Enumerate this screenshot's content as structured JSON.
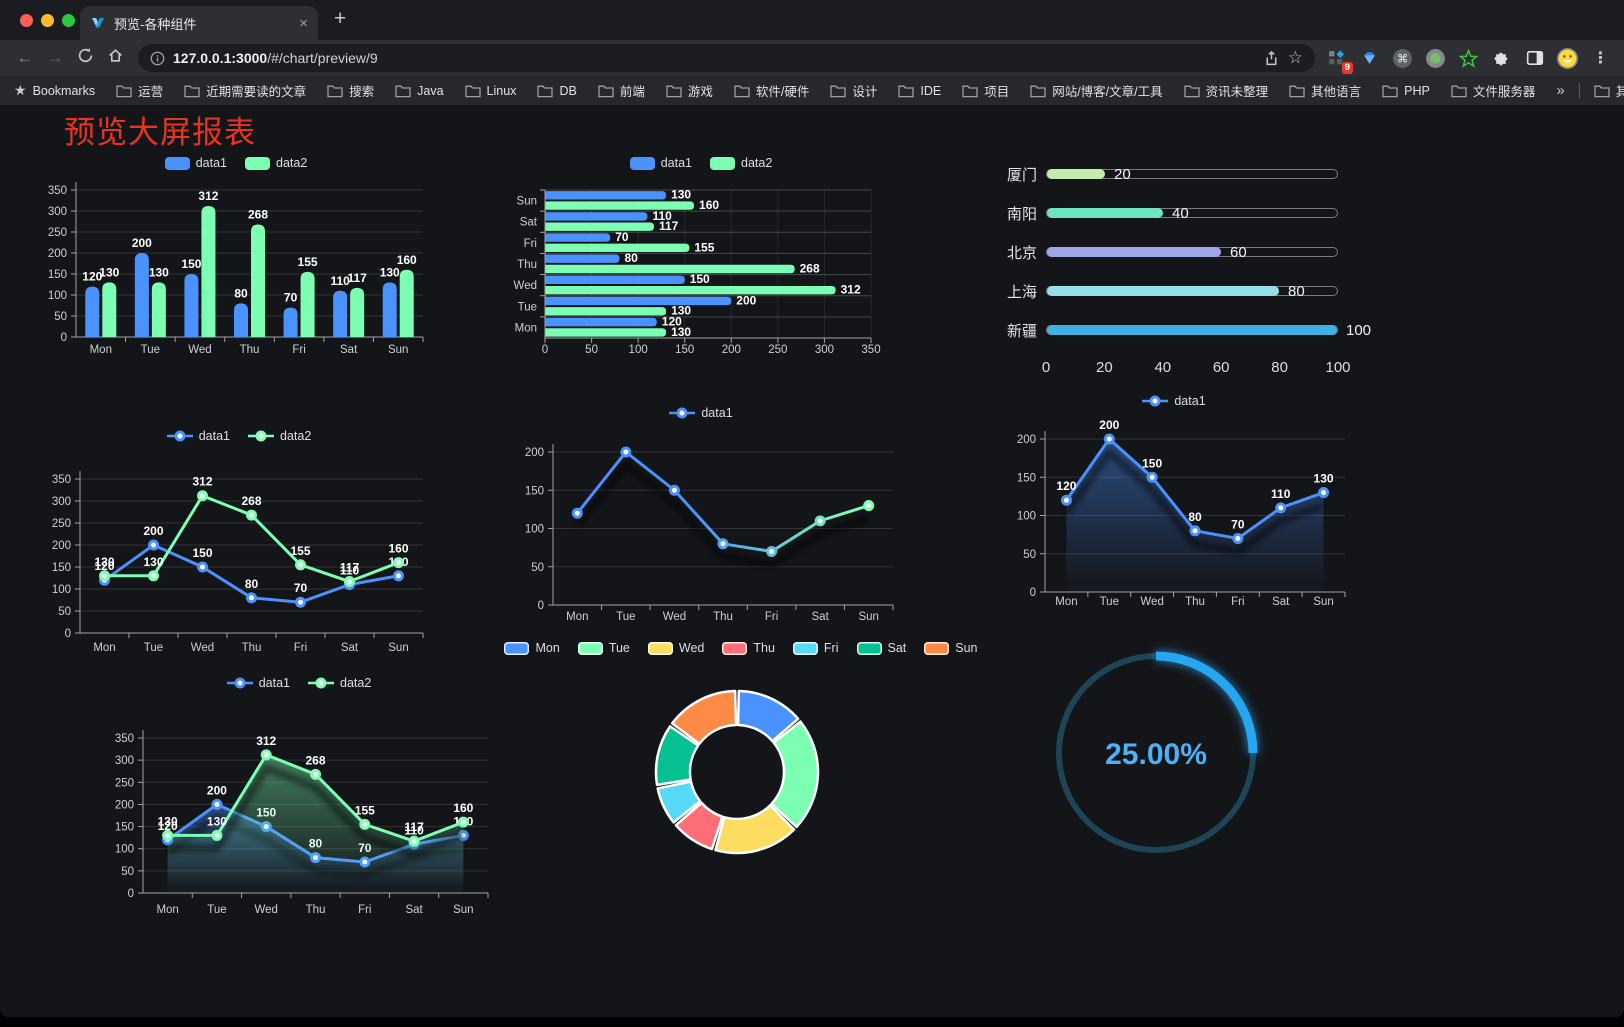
{
  "browser": {
    "tab": {
      "title": "预览-各种组件",
      "close": "×",
      "new_tab": "+"
    },
    "address": {
      "url_host": "127.0.0.1:3000",
      "url_path": "/#/chart/preview/9"
    },
    "extension_badge": "9",
    "bookmarks": {
      "label": "Bookmarks",
      "folders": [
        "运营",
        "近期需要读的文章",
        "搜索",
        "Java",
        "Linux",
        "DB",
        "前端",
        "游戏",
        "软件/硬件",
        "设计",
        "IDE",
        "项目",
        "网站/博客/文章/工具",
        "资讯未整理",
        "其他语言",
        "PHP",
        "文件服务器"
      ],
      "overflow": "»",
      "other": "其他书签"
    }
  },
  "page": {
    "title": "预览大屏报表",
    "title_color": "#e83323",
    "background": "#141519"
  },
  "palette": {
    "data1": "#4992ff",
    "data2": "#7cffb2"
  },
  "chart_data": [
    {
      "id": "grouped-bar",
      "type": "bar",
      "categories": [
        "Mon",
        "Tue",
        "Wed",
        "Thu",
        "Fri",
        "Sat",
        "Sun"
      ],
      "series": [
        {
          "name": "data1",
          "color": "#4992ff",
          "values": [
            120,
            200,
            150,
            80,
            70,
            110,
            130
          ]
        },
        {
          "name": "data2",
          "color": "#7cffb2",
          "values": [
            130,
            130,
            312,
            268,
            155,
            117,
            160
          ]
        }
      ],
      "ylim": [
        0,
        350
      ],
      "yticks": [
        0,
        50,
        100,
        150,
        200,
        250,
        300,
        350
      ],
      "legend_position": "top",
      "grid": true,
      "value_labels": true
    },
    {
      "id": "horizontal-bar",
      "type": "bar-horizontal",
      "categories": [
        "Mon",
        "Tue",
        "Wed",
        "Thu",
        "Fri",
        "Sat",
        "Sun"
      ],
      "series": [
        {
          "name": "data1",
          "color": "#4992ff",
          "values": [
            120,
            200,
            150,
            80,
            70,
            110,
            130
          ]
        },
        {
          "name": "data2",
          "color": "#7cffb2",
          "values": [
            130,
            130,
            312,
            268,
            155,
            117,
            160
          ]
        }
      ],
      "xlim": [
        0,
        350
      ],
      "xticks": [
        0,
        50,
        100,
        150,
        200,
        250,
        300,
        350
      ],
      "legend_position": "top",
      "grid": true,
      "value_labels": true
    },
    {
      "id": "progress-bars",
      "type": "progress",
      "max": 100,
      "xticks": [
        0,
        20,
        40,
        60,
        80,
        100
      ],
      "items": [
        {
          "label": "厦门",
          "value": 20,
          "color": "#c4ebad"
        },
        {
          "label": "南阳",
          "value": 40,
          "color": "#6be6c1"
        },
        {
          "label": "北京",
          "value": 60,
          "color": "#a0a7e6"
        },
        {
          "label": "上海",
          "value": 80,
          "color": "#96dee8"
        },
        {
          "label": "新疆",
          "value": 100,
          "color": "#3fb1e3"
        }
      ]
    },
    {
      "id": "line-two-series",
      "type": "line",
      "categories": [
        "Mon",
        "Tue",
        "Wed",
        "Thu",
        "Fri",
        "Sat",
        "Sun"
      ],
      "series": [
        {
          "name": "data1",
          "color": "#4992ff",
          "values": [
            120,
            200,
            150,
            80,
            70,
            110,
            130
          ]
        },
        {
          "name": "data2",
          "color": "#7cffb2",
          "values": [
            130,
            130,
            312,
            268,
            155,
            117,
            160
          ]
        }
      ],
      "ylim": [
        0,
        350
      ],
      "yticks": [
        0,
        50,
        100,
        150,
        200,
        250,
        300,
        350
      ],
      "legend_position": "top",
      "grid": true,
      "value_labels": true
    },
    {
      "id": "line-gradient",
      "type": "line",
      "categories": [
        "Mon",
        "Tue",
        "Wed",
        "Thu",
        "Fri",
        "Sat",
        "Sun"
      ],
      "series": [
        {
          "name": "data1",
          "color": "#4992ff",
          "color_gradient": [
            "#4992ff",
            "#7cffb2"
          ],
          "values": [
            120,
            200,
            150,
            80,
            70,
            110,
            130
          ]
        }
      ],
      "ylim": [
        0,
        200
      ],
      "yticks": [
        0,
        50,
        100,
        150,
        200
      ],
      "legend_position": "top",
      "grid": true,
      "value_labels": false,
      "shadow": true
    },
    {
      "id": "area-single",
      "type": "area",
      "categories": [
        "Mon",
        "Tue",
        "Wed",
        "Thu",
        "Fri",
        "Sat",
        "Sun"
      ],
      "series": [
        {
          "name": "data1",
          "color": "#4992ff",
          "values": [
            120,
            200,
            150,
            80,
            70,
            110,
            130
          ]
        }
      ],
      "ylim": [
        0,
        200
      ],
      "yticks": [
        0,
        50,
        100,
        150,
        200
      ],
      "legend_position": "top",
      "grid": true,
      "value_labels": true,
      "shadow": true
    },
    {
      "id": "area-two-series",
      "type": "area",
      "categories": [
        "Mon",
        "Tue",
        "Wed",
        "Thu",
        "Fri",
        "Sat",
        "Sun"
      ],
      "series": [
        {
          "name": "data1",
          "color": "#4992ff",
          "values": [
            120,
            200,
            150,
            80,
            70,
            110,
            130
          ]
        },
        {
          "name": "data2",
          "color": "#7cffb2",
          "values": [
            130,
            130,
            312,
            268,
            155,
            117,
            160
          ]
        }
      ],
      "ylim": [
        0,
        350
      ],
      "yticks": [
        0,
        50,
        100,
        150,
        200,
        250,
        300,
        350
      ],
      "legend_position": "top",
      "grid": true,
      "value_labels": true,
      "shadow": true
    },
    {
      "id": "donut",
      "type": "pie",
      "categories": [
        "Mon",
        "Tue",
        "Wed",
        "Thu",
        "Fri",
        "Sat",
        "Sun"
      ],
      "values": [
        120,
        200,
        150,
        80,
        70,
        110,
        130
      ],
      "colors": [
        "#4992ff",
        "#7cffb2",
        "#fddd60",
        "#ff6e76",
        "#58d9f9",
        "#05c091",
        "#ff8a45"
      ],
      "inner_radius_ratio": 0.58,
      "legend_position": "top"
    },
    {
      "id": "gauge",
      "type": "gauge",
      "value": 25,
      "label": "25.00%",
      "color": "#28a5f0",
      "track_color": "#1d4457",
      "text_color": "#4cb1f7"
    }
  ]
}
